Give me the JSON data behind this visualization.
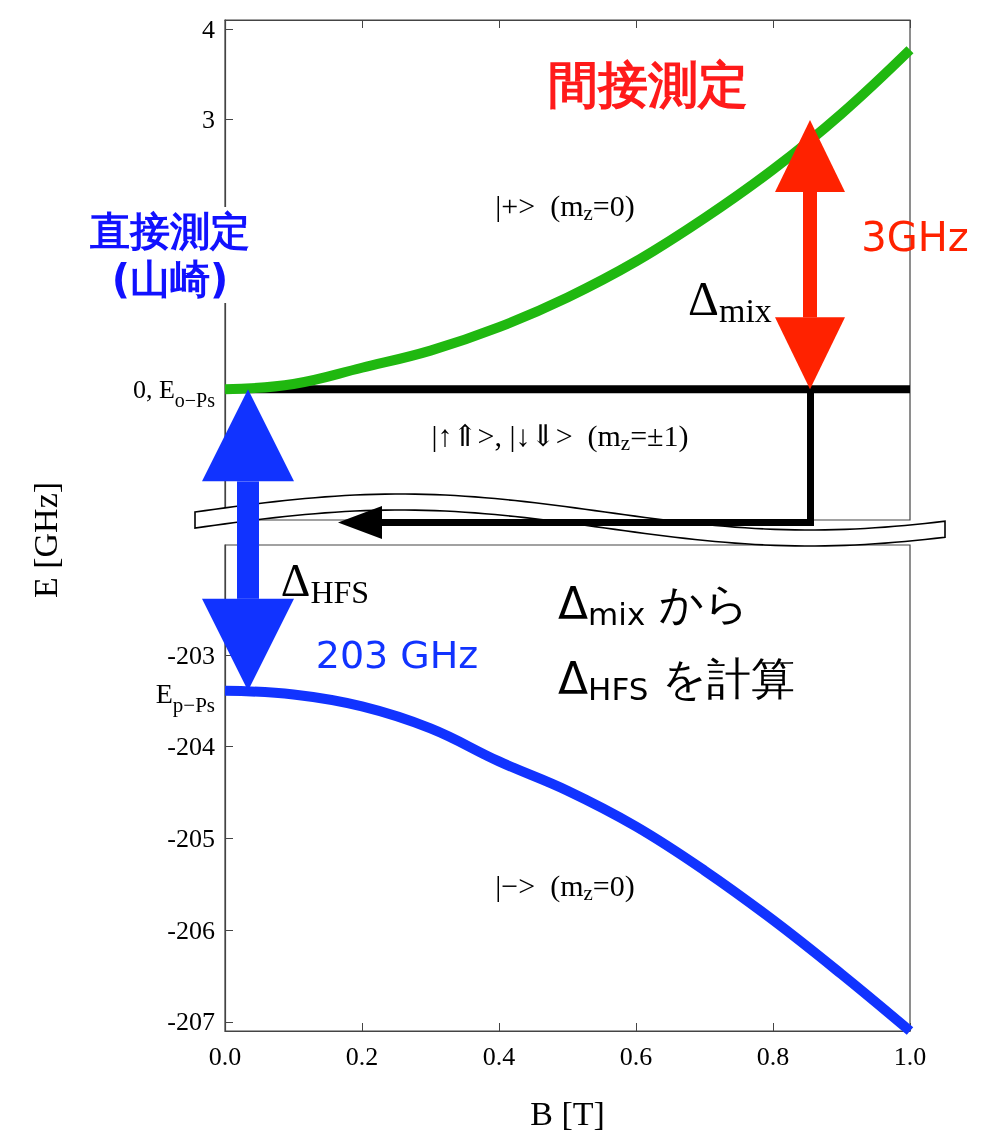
{
  "chart_data": [
    {
      "type": "line",
      "ylabel": "E [GHz]",
      "xlim": [
        0,
        1
      ],
      "xticks": [
        0,
        0.2,
        0.4,
        0.6,
        0.8,
        1
      ],
      "ylim": [
        -1.45,
        4.1
      ],
      "yticks": [
        {
          "value": 0,
          "label": "0, E$_{o−Ps}$"
        },
        {
          "value": 1,
          "label": null
        },
        {
          "value": 2,
          "label": null
        },
        3,
        4
      ],
      "tick_labels": "y",
      "series": [
        {
          "color": "#20b810",
          "x": [
            0,
            0.1,
            0.2,
            0.3,
            0.4,
            0.5,
            0.6,
            0.7,
            0.8,
            0.9,
            1.0
          ],
          "values": [
            0,
            0.06,
            0.24,
            0.43,
            0.69,
            1.02,
            1.42,
            1.9,
            2.44,
            3.06,
            3.77
          ]
        },
        {
          "color": "#000000",
          "x": [
            0,
            1
          ],
          "values": [
            0,
            0
          ]
        }
      ],
      "annotations": [
        "間接測定",
        "3GHz",
        "直接測定\n(山崎)",
        "|+>  (m$_{z}$=0)",
        "Δ$_{mix}$",
        "|↑⇑>, |↓⇓>  (m$_{z}$=±1)"
      ]
    },
    {
      "type": "line",
      "xlabel": "B [T]",
      "xlim": [
        0,
        1
      ],
      "xticks": [
        {
          "value": 0,
          "label": "0.0"
        },
        0.2,
        0.4,
        0.6,
        0.8,
        {
          "value": 1,
          "label": "1.0"
        }
      ],
      "ylim": [
        -207.1,
        -201.8
      ],
      "yticks": [
        -207,
        -206,
        -205,
        -204,
        -203
      ],
      "series": [
        {
          "color": "#1133ff",
          "x": [
            0,
            0.1,
            0.2,
            0.3,
            0.4,
            0.5,
            0.6,
            0.7,
            0.8,
            0.9,
            1.0
          ],
          "values": [
            -203.39,
            -203.43,
            -203.56,
            -203.8,
            -204.16,
            -204.48,
            -204.87,
            -205.35,
            -205.89,
            -206.48,
            -207.1
          ]
        }
      ],
      "annotations": [
        "Δ$_{HFS}$",
        "203 GHz",
        "Δ$_{mix}$ から",
        "Δ$_{HFS}$ を計算",
        "|−>  (m$_{z}$=0)",
        {
          "text": "E$_{p−Ps}$",
          "x": 0,
          "y": -203.39
        }
      ]
    }
  ]
}
